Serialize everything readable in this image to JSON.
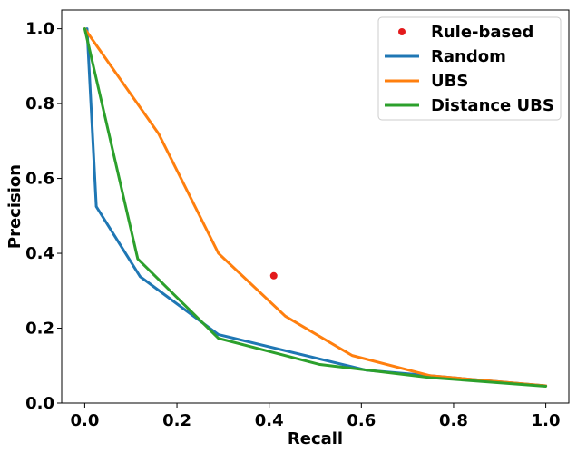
{
  "chart_data": {
    "type": "line",
    "xlabel": "Recall",
    "ylabel": "Precision",
    "xlim": [
      -0.05,
      1.05
    ],
    "ylim": [
      0.0,
      1.05
    ],
    "xticks": [
      0.0,
      0.2,
      0.4,
      0.6,
      0.8,
      1.0
    ],
    "yticks": [
      0.0,
      0.2,
      0.4,
      0.6,
      0.8,
      1.0
    ],
    "xtick_labels": [
      "0.0",
      "0.2",
      "0.4",
      "0.6",
      "0.8",
      "1.0"
    ],
    "ytick_labels": [
      "0.0",
      "0.2",
      "0.4",
      "0.6",
      "0.8",
      "1.0"
    ],
    "grid": false,
    "legend_position": "top-right",
    "series": [
      {
        "name": "Rule-based",
        "kind": "marker",
        "color": "#e31a1c",
        "x": [
          0.41
        ],
        "y": [
          0.34
        ]
      },
      {
        "name": "Random",
        "kind": "line",
        "color": "#1f77b4",
        "x": [
          0.005,
          0.025,
          0.12,
          0.29,
          0.61,
          1.0
        ],
        "y": [
          1.0,
          0.525,
          0.338,
          0.183,
          0.088,
          0.046
        ]
      },
      {
        "name": "UBS",
        "kind": "line",
        "color": "#ff7f0e",
        "x": [
          0.0,
          0.16,
          0.29,
          0.435,
          0.58,
          0.75,
          1.0
        ],
        "y": [
          1.0,
          0.72,
          0.4,
          0.232,
          0.127,
          0.073,
          0.046
        ]
      },
      {
        "name": "Distance UBS",
        "kind": "line",
        "color": "#2ca02c",
        "x": [
          0.0,
          0.115,
          0.29,
          0.51,
          0.75,
          1.0
        ],
        "y": [
          1.0,
          0.385,
          0.173,
          0.103,
          0.068,
          0.045
        ]
      }
    ]
  }
}
